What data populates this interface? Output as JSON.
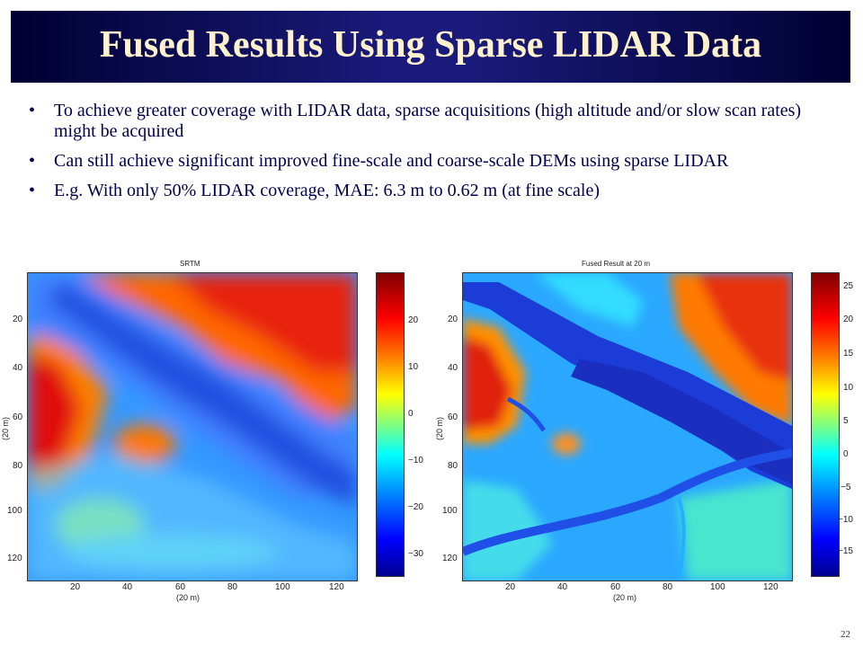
{
  "title": "Fused Results Using Sparse LIDAR Data",
  "bullets": [
    "To achieve greater coverage with LIDAR data, sparse acquisitions (high altitude and/or slow scan rates) might be acquired",
    "Can still achieve significant improved fine-scale and coarse-scale DEMs using sparse LIDAR",
    "E.g. With only 50% LIDAR coverage, MAE: 6.3 m to 0.62 m (at fine scale)"
  ],
  "bullet_symbol": "•",
  "left_plot": {
    "title": "SRTM",
    "x_ticks": [
      "20",
      "40",
      "60",
      "80",
      "100",
      "120"
    ],
    "y_ticks": [
      "20",
      "40",
      "60",
      "80",
      "100",
      "120"
    ],
    "x_label": "(20 m)",
    "y_label": "(20 m)",
    "cbar_ticks": [
      "20",
      "10",
      "0",
      "−10",
      "−20",
      "−30"
    ]
  },
  "right_plot": {
    "title": "Fused Result at 20 m",
    "x_ticks": [
      "20",
      "40",
      "60",
      "80",
      "100",
      "120"
    ],
    "y_ticks": [
      "20",
      "40",
      "60",
      "80",
      "100",
      "120"
    ],
    "x_label": "(20 m)",
    "y_label": "(20 m)",
    "cbar_ticks": [
      "25",
      "20",
      "15",
      "10",
      "5",
      "0",
      "−5",
      "−10",
      "−15"
    ]
  },
  "page_number": "22",
  "colors": {
    "title_bg": "#1a1a7a",
    "title_text": "#fff2cc",
    "body_text": "#000050"
  }
}
